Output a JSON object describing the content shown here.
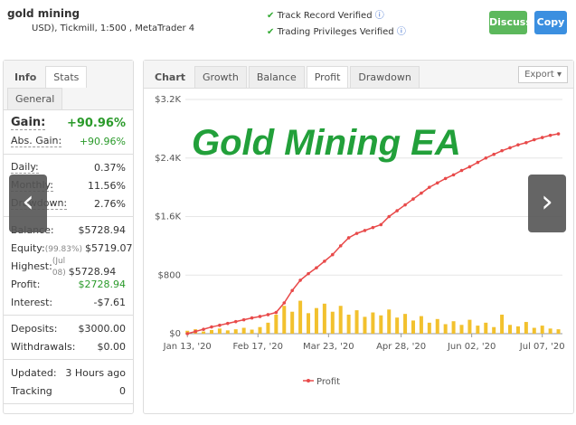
{
  "header": {
    "title": "gold mining",
    "subtitle": "USD), Tickmill, 1:500 , MetaTrader 4",
    "verified": [
      "Track Record Verified",
      "Trading Privileges Verified"
    ],
    "buttons": [
      "Discuss",
      "Copy"
    ]
  },
  "info_panel": {
    "tabs": [
      "Info",
      "Stats",
      "General"
    ],
    "groups": [
      [
        {
          "label": "Gain:",
          "value": "+90.96%"
        },
        {
          "label": "Abs. Gain:",
          "value": "+90.96%"
        }
      ],
      [
        {
          "label": "Daily:",
          "value": "0.37%"
        },
        {
          "label": "Monthly:",
          "value": "11.56%"
        },
        {
          "label": "Drawdown:",
          "value": "2.76%"
        }
      ],
      [
        {
          "label": "Balance:",
          "value": "$5728.94"
        },
        {
          "label": "Equity:",
          "note": "(99.83%)",
          "value": "$5719.07"
        },
        {
          "label": "Highest:",
          "note": "(Jul 08)",
          "value": "$5728.94"
        },
        {
          "label": "Profit:",
          "value": "$2728.94"
        },
        {
          "label": "Interest:",
          "value": "-$7.61"
        }
      ],
      [
        {
          "label": "Deposits:",
          "value": "$3000.00"
        },
        {
          "label": "Withdrawals:",
          "value": "$0.00"
        }
      ],
      [
        {
          "label": "Updated:",
          "value": "3 Hours ago"
        },
        {
          "label": "Tracking",
          "value": "0"
        }
      ]
    ]
  },
  "chart_panel": {
    "tabs": [
      "Chart",
      "Growth",
      "Balance",
      "Profit",
      "Drawdown"
    ],
    "export": "Export",
    "overlay": "Gold Mining EA"
  },
  "chart_data": {
    "type": "line",
    "x": [
      0,
      4,
      8,
      12,
      16,
      20,
      24,
      28,
      32,
      36,
      40,
      44,
      48,
      52,
      56,
      60,
      64,
      68,
      72,
      76,
      80,
      84,
      88,
      92,
      96,
      100,
      104,
      108,
      112,
      116,
      120,
      124,
      128,
      132,
      136,
      140,
      144,
      148,
      152,
      156,
      160,
      164,
      168,
      172,
      176,
      180,
      184
    ],
    "series": [
      {
        "name": "Profit",
        "color": "#e84a4a",
        "values": [
          0,
          30,
          60,
          92,
          115,
          140,
          165,
          190,
          215,
          235,
          260,
          290,
          420,
          590,
          730,
          820,
          900,
          990,
          1080,
          1200,
          1310,
          1370,
          1410,
          1450,
          1490,
          1600,
          1680,
          1760,
          1840,
          1920,
          2000,
          2060,
          2120,
          2170,
          2230,
          2280,
          2340,
          2400,
          2450,
          2500,
          2540,
          2580,
          2610,
          2650,
          2680,
          2710,
          2730
        ]
      },
      {
        "type": "bar",
        "color": "#f2c12e",
        "values": [
          40,
          60,
          30,
          50,
          70,
          45,
          60,
          80,
          55,
          90,
          150,
          260,
          380,
          300,
          450,
          280,
          350,
          410,
          300,
          380,
          260,
          320,
          230,
          290,
          250,
          330,
          220,
          270,
          180,
          240,
          150,
          200,
          130,
          170,
          120,
          190,
          110,
          150,
          90,
          260,
          120,
          100,
          160,
          80,
          110,
          70,
          60
        ]
      }
    ],
    "xlim": [
      -1,
      186
    ],
    "xticks": [
      {
        "value": 0,
        "label": "Jan 13, '20"
      },
      {
        "value": 35,
        "label": "Feb 17, '20"
      },
      {
        "value": 70,
        "label": "Mar 23, '20"
      },
      {
        "value": 106,
        "label": "Apr 28, '20"
      },
      {
        "value": 141,
        "label": "Jun 02, '20"
      },
      {
        "value": 176,
        "label": "Jul 07, '20"
      }
    ],
    "ylim": [
      0,
      3200
    ],
    "yticks": [
      {
        "value": 0,
        "label": "$0"
      },
      {
        "value": 800,
        "label": "$800"
      },
      {
        "value": 1600,
        "label": "$1.6K"
      },
      {
        "value": 2400,
        "label": "$2.4K"
      },
      {
        "value": 3200,
        "label": "$3.2K"
      }
    ],
    "grid": true
  }
}
